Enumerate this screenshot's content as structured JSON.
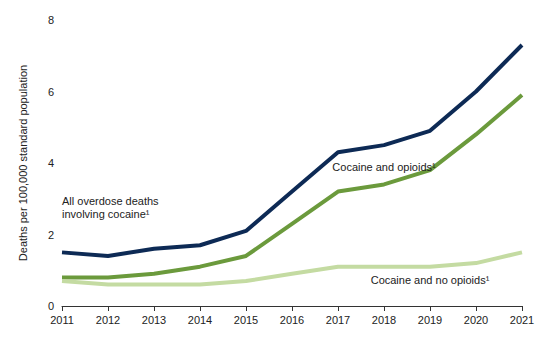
{
  "chart_data": {
    "type": "line",
    "y_label": "Deaths per 100,000 standard population",
    "categories": [
      "2011",
      "2012",
      "2013",
      "2014",
      "2015",
      "2016",
      "2017",
      "2018",
      "2019",
      "2020",
      "2021"
    ],
    "series": [
      {
        "name": "All overdose deaths involving cocaine¹",
        "color": "#0d2a55",
        "values": [
          1.5,
          1.4,
          1.6,
          1.7,
          2.1,
          3.2,
          4.3,
          4.5,
          4.9,
          6.0,
          7.3
        ]
      },
      {
        "name": "Cocaine and opioids¹",
        "color": "#6b9a3c",
        "values": [
          0.8,
          0.8,
          0.9,
          1.1,
          1.4,
          2.3,
          3.2,
          3.4,
          3.8,
          4.8,
          5.9
        ]
      },
      {
        "name": "Cocaine and no opioids¹",
        "color": "#c4dba2",
        "values": [
          0.7,
          0.6,
          0.6,
          0.6,
          0.7,
          0.9,
          1.1,
          1.1,
          1.1,
          1.2,
          1.5
        ]
      }
    ],
    "ylim": [
      0,
      8
    ],
    "yticks": [
      0,
      2,
      4,
      6,
      8
    ],
    "grid": false
  }
}
